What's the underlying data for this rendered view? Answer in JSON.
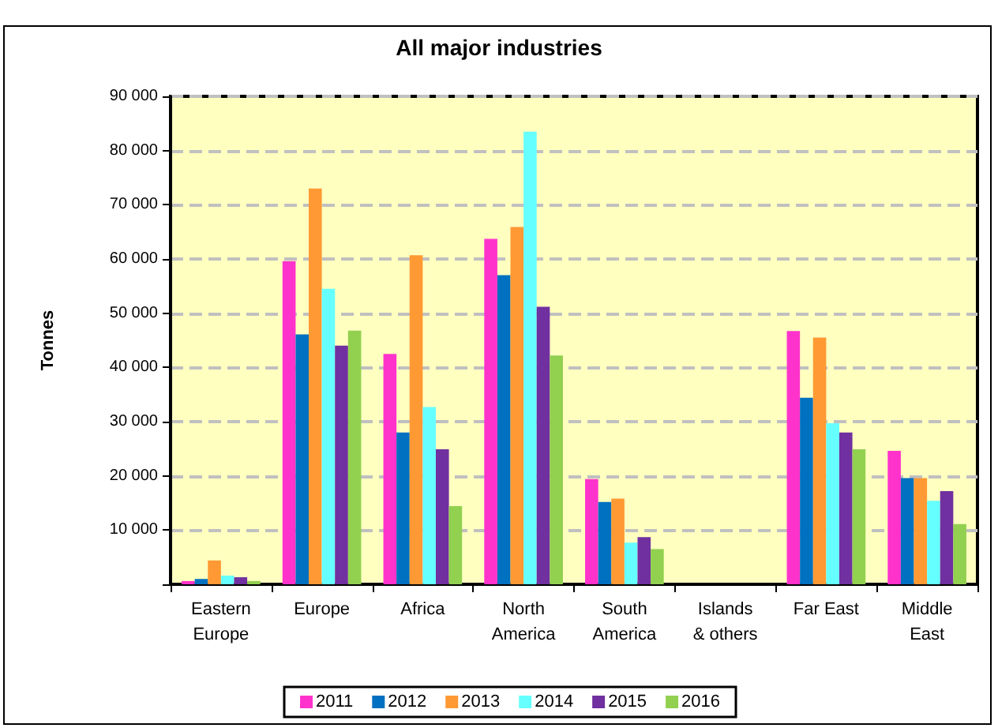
{
  "chart_data": {
    "type": "bar",
    "title": "All major industries",
    "ylabel": "Tonnes",
    "categories": [
      "Eastern\nEurope",
      "Europe",
      "Africa",
      "North\nAmerica",
      "South\nAmerica",
      "Islands\n& others",
      "Far East",
      "Middle\nEast"
    ],
    "series": [
      {
        "name": "2011",
        "color": "#ff33cc",
        "values": [
          600,
          59600,
          42500,
          63700,
          19400,
          0,
          46700,
          24600
        ]
      },
      {
        "name": "2012",
        "color": "#0070c0",
        "values": [
          1000,
          46100,
          28000,
          57000,
          15200,
          0,
          34400,
          19600
        ]
      },
      {
        "name": "2013",
        "color": "#ff9933",
        "values": [
          4400,
          73000,
          60700,
          65900,
          15800,
          0,
          45500,
          19600
        ]
      },
      {
        "name": "2014",
        "color": "#66ffff",
        "values": [
          1600,
          54500,
          32700,
          83500,
          7700,
          0,
          29700,
          15400
        ]
      },
      {
        "name": "2015",
        "color": "#7030a0",
        "values": [
          1300,
          44000,
          24900,
          51200,
          8700,
          0,
          28000,
          17200
        ]
      },
      {
        "name": "2016",
        "color": "#92d050",
        "values": [
          600,
          46800,
          14400,
          42200,
          6500,
          0,
          24900,
          11100
        ]
      }
    ],
    "ylim": [
      0,
      90000
    ],
    "yticks": [
      {
        "value": 0,
        "label": null
      },
      {
        "value": 10000,
        "label": "10 000"
      },
      {
        "value": 20000,
        "label": "20 000"
      },
      {
        "value": 30000,
        "label": "30 000"
      },
      {
        "value": 40000,
        "label": "40 000"
      },
      {
        "value": 50000,
        "label": "50 000"
      },
      {
        "value": 60000,
        "label": "60 000"
      },
      {
        "value": 70000,
        "label": "70 000"
      },
      {
        "value": 80000,
        "label": "80 000"
      },
      {
        "value": 90000,
        "label": "90 000"
      }
    ],
    "grid": "y",
    "legend": "bottom"
  }
}
